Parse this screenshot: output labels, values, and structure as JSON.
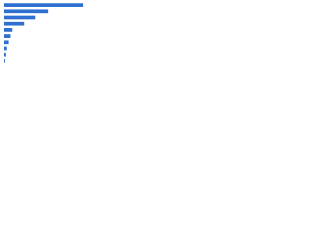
{
  "chart_data": {
    "type": "bar",
    "orientation": "horizontal",
    "categories": [
      null,
      null,
      null,
      null,
      null,
      null,
      null,
      null,
      null,
      null
    ],
    "values": [
      86,
      48,
      34,
      22,
      9,
      7,
      5,
      3,
      2,
      1
    ],
    "color": "#2e6fd0",
    "xlim": [
      0,
      100
    ]
  }
}
